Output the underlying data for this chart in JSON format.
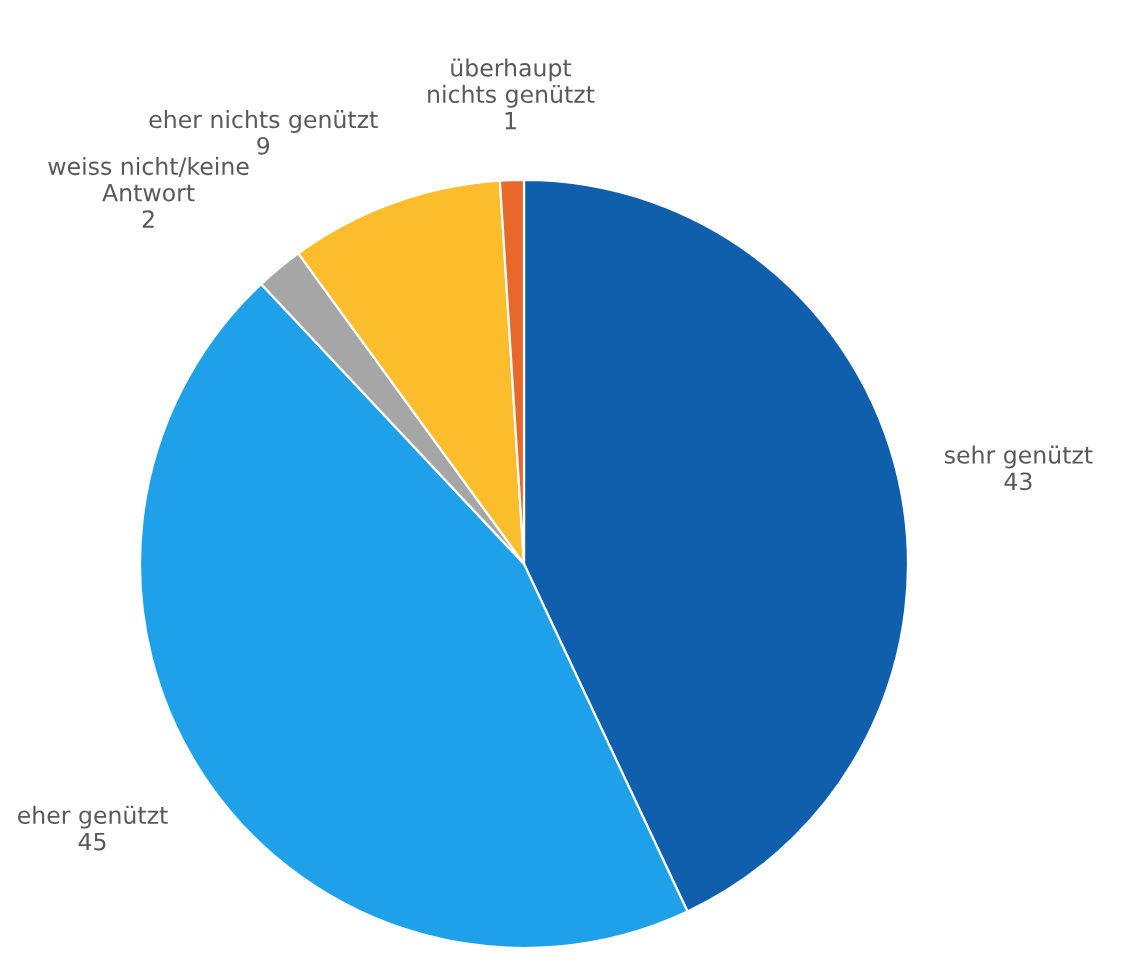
{
  "chart_data": {
    "type": "pie",
    "categories": [
      "sehr genützt",
      "eher genützt",
      "weiss nicht/keine Antwort",
      "eher nichts genützt",
      "überhaupt nichts genützt"
    ],
    "values": [
      43,
      45,
      2,
      9,
      1
    ],
    "colors": [
      "#0f5fad",
      "#1fa1ea",
      "#a6a6a6",
      "#fbbd2b",
      "#e8672a"
    ],
    "data_labels": true
  }
}
